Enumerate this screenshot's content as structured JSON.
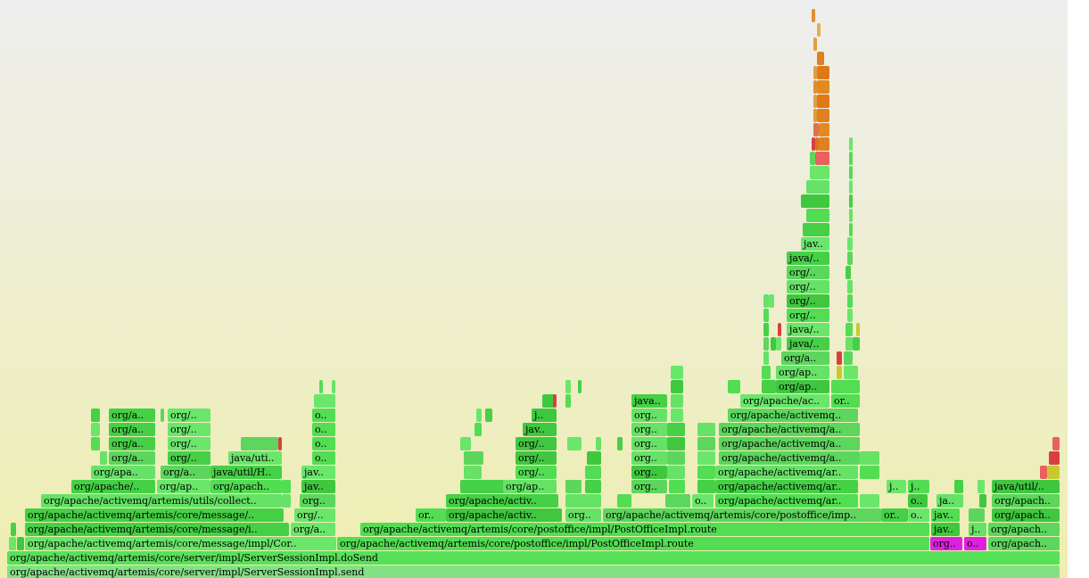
{
  "frames": [
    {
      "label": "org/apache/activemq/artemis/core/server/impl/ServerSessionImpl.send"
    },
    {
      "label": "org/apache/activemq/artemis/core/server/impl/ServerSessionImpl.doSend"
    },
    {
      "label": "org/apache/activemq/artemis/core/message/impl/Cor.."
    },
    {
      "label": "org/apache/activemq/artemis/core/postoffice/impl/PostOfficeImpl.route"
    },
    {
      "label": "org.."
    },
    {
      "label": "o.."
    },
    {
      "label": "org/apach.."
    },
    {
      "label": "org/apache/activemq/artemis/core/message/i.."
    },
    {
      "label": "org/a.."
    },
    {
      "label": "org/apache/activemq/artemis/core/postoffice/impl/PostOfficeImpl.route"
    },
    {
      "label": "jav.."
    },
    {
      "label": "j.."
    },
    {
      "label": "org/apach.."
    },
    {
      "label": "org/apache/activemq/artemis/core/message/.."
    },
    {
      "label": "org/.."
    },
    {
      "label": "or.."
    },
    {
      "label": "org/apache/activ.."
    },
    {
      "label": "org.."
    },
    {
      "label": "org/apache/activemq/artemis/core/postoffice/imp.."
    },
    {
      "label": "or.."
    },
    {
      "label": "o.."
    },
    {
      "label": "jav.."
    },
    {
      "label": "org/apach.."
    },
    {
      "label": "org/apache/activemq/artemis/utils/collect.."
    },
    {
      "label": "org.."
    },
    {
      "label": "org/apache/activ.."
    },
    {
      "label": "o.."
    },
    {
      "label": "org/apache/activemq/ar.."
    },
    {
      "label": "o.."
    },
    {
      "label": "ja.."
    },
    {
      "label": "org/apach.."
    },
    {
      "label": "org/apache/.."
    },
    {
      "label": "org/ap.."
    },
    {
      "label": "org/apach.."
    },
    {
      "label": "jav.."
    },
    {
      "label": "org/ap.."
    },
    {
      "label": "org.."
    },
    {
      "label": "org/apache/activemq/ar.."
    },
    {
      "label": "j.."
    },
    {
      "label": "j.."
    },
    {
      "label": "java/util/.."
    },
    {
      "label": "org/apa.."
    },
    {
      "label": "org/a.."
    },
    {
      "label": "java/util/H.."
    },
    {
      "label": "jav.."
    },
    {
      "label": "org/.."
    },
    {
      "label": "org.."
    },
    {
      "label": "org/apache/activemq/ar.."
    },
    {
      "label": "org/a.."
    },
    {
      "label": "org/.."
    },
    {
      "label": "java/uti.."
    },
    {
      "label": "o.."
    },
    {
      "label": "org/.."
    },
    {
      "label": "org.."
    },
    {
      "label": "org/apache/activemq/a.."
    },
    {
      "label": "org/a.."
    },
    {
      "label": "org/.."
    },
    {
      "label": "o.."
    },
    {
      "label": "org/.."
    },
    {
      "label": "org.."
    },
    {
      "label": "org/apache/activemq/a.."
    },
    {
      "label": "org/a.."
    },
    {
      "label": "org/.."
    },
    {
      "label": "o.."
    },
    {
      "label": "jav.."
    },
    {
      "label": "org.."
    },
    {
      "label": "org/apache/activemq/a.."
    },
    {
      "label": "org/a.."
    },
    {
      "label": "org/.."
    },
    {
      "label": "o.."
    },
    {
      "label": "j.."
    },
    {
      "label": "org.."
    },
    {
      "label": "org/apache/activemq.."
    },
    {
      "label": "java.."
    },
    {
      "label": "org/apache/ac.."
    },
    {
      "label": "or.."
    },
    {
      "label": "org/ap.."
    },
    {
      "label": "org/ap.."
    },
    {
      "label": "org/a.."
    },
    {
      "label": "java/.."
    },
    {
      "label": "java/.."
    },
    {
      "label": "org/.."
    },
    {
      "label": "org/.."
    },
    {
      "label": "org/.."
    },
    {
      "label": "org/.."
    },
    {
      "label": "java/.."
    },
    {
      "label": "jav.."
    }
  ]
}
